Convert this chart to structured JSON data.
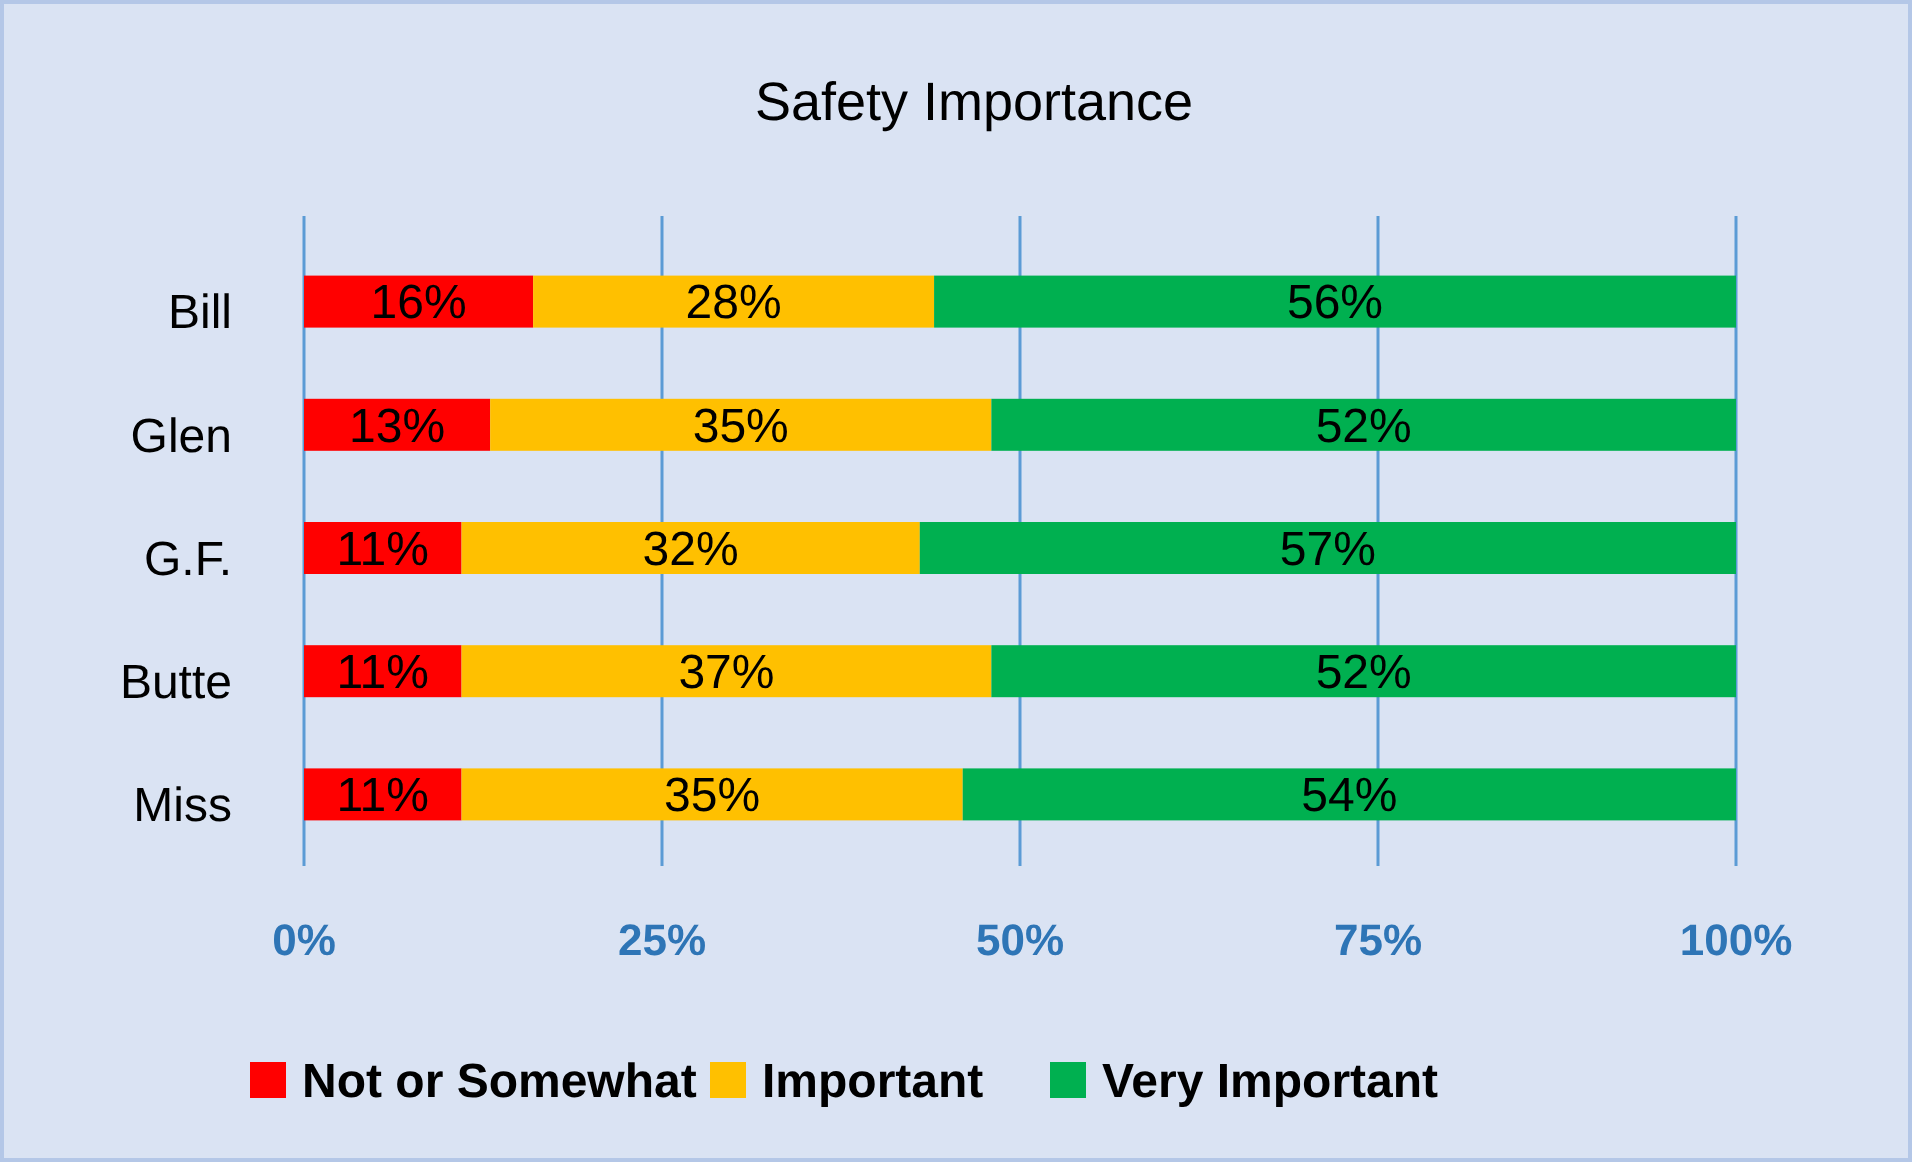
{
  "chart_data": {
    "type": "bar",
    "title": "Safety Importance",
    "orientation": "horizontal",
    "stacked": true,
    "categories": [
      "Bill",
      "Glen",
      "G.F.",
      "Butte",
      "Miss"
    ],
    "series": [
      {
        "name": "Not or Somewhat",
        "color": "#ff0000",
        "values": [
          16,
          13,
          11,
          11,
          11
        ],
        "value_labels": [
          "16%",
          "13%",
          "11%",
          "11%",
          "11%"
        ]
      },
      {
        "name": "Important",
        "color": "#ffc000",
        "values": [
          28,
          35,
          32,
          37,
          35
        ],
        "value_labels": [
          "28%",
          "35%",
          "32%",
          "37%",
          "35%"
        ]
      },
      {
        "name": "Very Important",
        "color": "#00b050",
        "values": [
          56,
          52,
          57,
          52,
          54
        ],
        "value_labels": [
          "56%",
          "52%",
          "57%",
          "52%",
          "54%"
        ]
      }
    ],
    "xlim": [
      0,
      100
    ],
    "xticks": [
      {
        "value": 0,
        "label": "0%"
      },
      {
        "value": 25,
        "label": "25%"
      },
      {
        "value": 50,
        "label": "50%"
      },
      {
        "value": 75,
        "label": "75%"
      },
      {
        "value": 100,
        "label": "100%"
      }
    ],
    "grid": "x",
    "legend": "bottom"
  }
}
